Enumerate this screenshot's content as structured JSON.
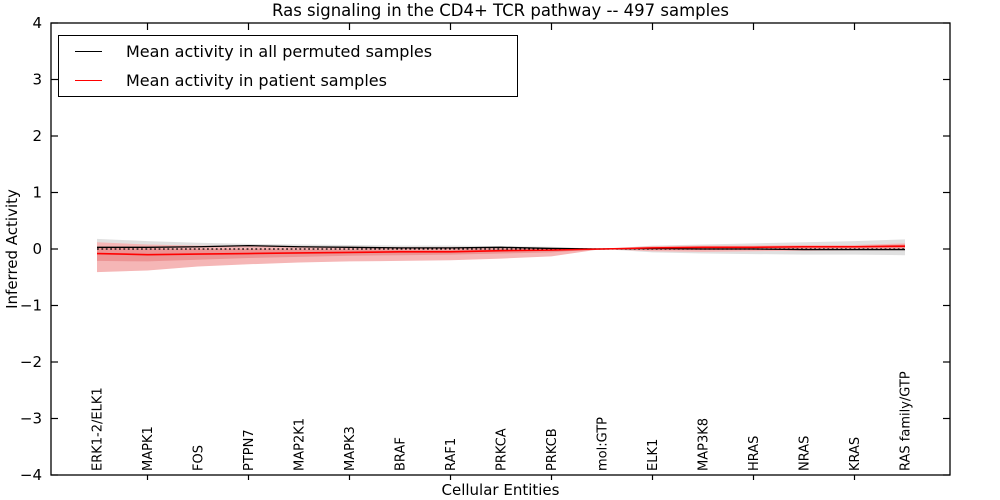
{
  "title": "Ras signaling in the CD4+ TCR pathway -- 497 samples",
  "xlabel": "Cellular Entities",
  "ylabel": "Inferred Activity",
  "legend": {
    "items": [
      {
        "label": "Mean activity in all permuted samples",
        "color": "#000000"
      },
      {
        "label": "Mean activity in patient samples",
        "color": "#ff0000"
      }
    ]
  },
  "chart_data": {
    "type": "line",
    "title": "Ras signaling in the CD4+ TCR pathway -- 497 samples",
    "xlabel": "Cellular Entities",
    "ylabel": "Inferred Activity",
    "ylim": [
      -4,
      4
    ],
    "yticks": [
      4,
      3,
      2,
      1,
      0,
      -1,
      -2,
      -3,
      -4
    ],
    "ytick_labels": [
      "4",
      "3",
      "2",
      "1",
      "0",
      "−1",
      "−2",
      "−3",
      "−4"
    ],
    "grid": false,
    "legend_position": "upper left",
    "categories": [
      "ERK1-2/ELK1",
      "MAPK1",
      "FOS",
      "PTPN7",
      "MAP2K1",
      "MAPK3",
      "BRAF",
      "RAF1",
      "PRKCA",
      "PRKCB",
      "mol:GTP",
      "ELK1",
      "MAP3K8",
      "HRAS",
      "NRAS",
      "KRAS",
      "RAS family/GTP"
    ],
    "zero_line": {
      "value": 0,
      "style": "dotted",
      "color": "#000000"
    },
    "series": [
      {
        "name": "Mean activity in all permuted samples",
        "color": "#000000",
        "values": [
          0.03,
          0.03,
          0.04,
          0.06,
          0.04,
          0.03,
          0.02,
          0.02,
          0.03,
          0.01,
          0.0,
          0.01,
          0.0,
          0.0,
          -0.01,
          -0.01,
          -0.01
        ]
      },
      {
        "name": "Mean activity in patient samples",
        "color": "#ff0000",
        "values": [
          -0.08,
          -0.1,
          -0.09,
          -0.08,
          -0.07,
          -0.06,
          -0.05,
          -0.05,
          -0.03,
          -0.02,
          0.0,
          0.02,
          0.03,
          0.03,
          0.04,
          0.04,
          0.05
        ]
      }
    ],
    "bands": [
      {
        "name": "permuted-samples-range",
        "color": "#e0e0e0",
        "upper": [
          0.18,
          0.14,
          0.11,
          0.09,
          0.08,
          0.07,
          0.06,
          0.06,
          0.05,
          0.04,
          0.0,
          0.06,
          0.08,
          0.1,
          0.12,
          0.14,
          0.17
        ],
        "lower": [
          -0.2,
          -0.15,
          -0.12,
          -0.1,
          -0.09,
          -0.08,
          -0.07,
          -0.07,
          -0.06,
          -0.05,
          0.0,
          -0.06,
          -0.08,
          -0.09,
          -0.1,
          -0.1,
          -0.11
        ]
      },
      {
        "name": "patient-samples-range-outer",
        "color": "#f5b6b6",
        "upper": [
          0.12,
          0.08,
          0.06,
          0.05,
          0.04,
          0.04,
          0.03,
          0.03,
          0.03,
          0.02,
          0.0,
          0.05,
          0.06,
          0.06,
          0.07,
          0.07,
          0.1
        ],
        "lower": [
          -0.41,
          -0.38,
          -0.31,
          -0.27,
          -0.24,
          -0.22,
          -0.21,
          -0.2,
          -0.17,
          -0.13,
          0.0,
          -0.04,
          -0.05,
          -0.04,
          -0.03,
          -0.02,
          -0.02
        ]
      },
      {
        "name": "patient-samples-range-inner",
        "color": "#ec9494",
        "upper": [
          0.02,
          0.01,
          0.0,
          0.0,
          -0.01,
          -0.01,
          -0.01,
          -0.01,
          0.0,
          0.0,
          0.0,
          0.03,
          0.04,
          0.04,
          0.05,
          0.05,
          0.08
        ],
        "lower": [
          -0.21,
          -0.22,
          -0.19,
          -0.16,
          -0.14,
          -0.12,
          -0.11,
          -0.1,
          -0.08,
          -0.06,
          0.0,
          -0.01,
          -0.01,
          0.0,
          0.01,
          0.02,
          0.02
        ]
      }
    ]
  }
}
